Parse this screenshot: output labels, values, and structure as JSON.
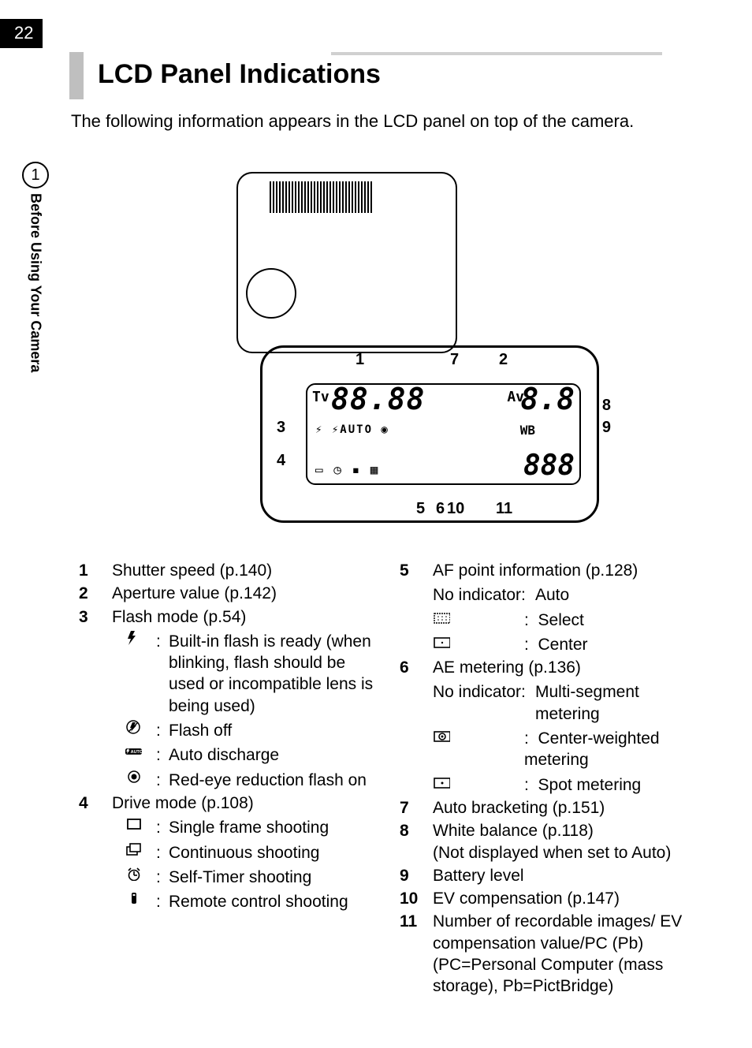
{
  "page_number": "22",
  "chapter_number": "1",
  "side_label": "Before Using Your Camera",
  "heading": "LCD Panel Indications",
  "intro": "The following information appears in the LCD panel on top of the camera.",
  "lcd_display": {
    "tv_label": "Tv",
    "tv_digits": "88.88",
    "av_label": "Av",
    "av_digits": "8.8",
    "mid_icons": "⚡ ⚡AUTO ◉",
    "wb_label": "WB",
    "bottom_icons": "▭ ◷ ▪ ▦",
    "count_digits": "888",
    "callouts": {
      "n1": "1",
      "n2": "2",
      "n3": "3",
      "n4": "4",
      "n5": "5",
      "n6": "6",
      "n7": "7",
      "n8": "8",
      "n9": "9",
      "n10": "10",
      "n11": "11"
    }
  },
  "left_items": [
    {
      "n": "1",
      "title": "Shutter speed (p.140)"
    },
    {
      "n": "2",
      "title": "Aperture value (p.142)"
    },
    {
      "n": "3",
      "title": "Flash mode (p.54)",
      "subs": [
        {
          "icon": "flash",
          "text": "Built-in flash is ready (when blinking, flash should be used or incompatible lens is being used)"
        },
        {
          "icon": "flash-off",
          "text": "Flash off"
        },
        {
          "icon": "flash-auto",
          "text": "Auto discharge"
        },
        {
          "icon": "redeye",
          "text": "Red-eye reduction flash on"
        }
      ]
    },
    {
      "n": "4",
      "title": "Drive mode (p.108)",
      "subs": [
        {
          "icon": "single",
          "text": "Single frame shooting"
        },
        {
          "icon": "continuous",
          "text": "Continuous shooting"
        },
        {
          "icon": "timer",
          "text": "Self-Timer shooting"
        },
        {
          "icon": "remote",
          "text": "Remote control shooting"
        }
      ]
    }
  ],
  "right_items": [
    {
      "n": "5",
      "title": "AF point information (p.128)",
      "subs2": [
        {
          "label": "No indicator:",
          "text": "Auto"
        },
        {
          "icon": "select-grid",
          "text": "Select"
        },
        {
          "icon": "center-frame",
          "text": "Center"
        }
      ]
    },
    {
      "n": "6",
      "title": "AE metering (p.136)",
      "subs2": [
        {
          "label": "No indicator:",
          "text": "Multi-segment metering"
        },
        {
          "icon": "center-weight",
          "text": "Center-weighted metering"
        },
        {
          "icon": "spot",
          "text": "Spot metering"
        }
      ]
    },
    {
      "n": "7",
      "title": "Auto bracketing (p.151)"
    },
    {
      "n": "8",
      "title": "White balance (p.118)",
      "extra": "(Not displayed when set to Auto)"
    },
    {
      "n": "9",
      "title": "Battery level"
    },
    {
      "n": "10",
      "title": "EV compensation (p.147)"
    },
    {
      "n": "11",
      "title": "Number of recordable images/ EV compensation value/PC (Pb) (PC=Personal Computer (mass storage), Pb=PictBridge)"
    }
  ],
  "colors": {
    "text": "#000000",
    "bg": "#ffffff",
    "rule": "#bfbfbf"
  }
}
